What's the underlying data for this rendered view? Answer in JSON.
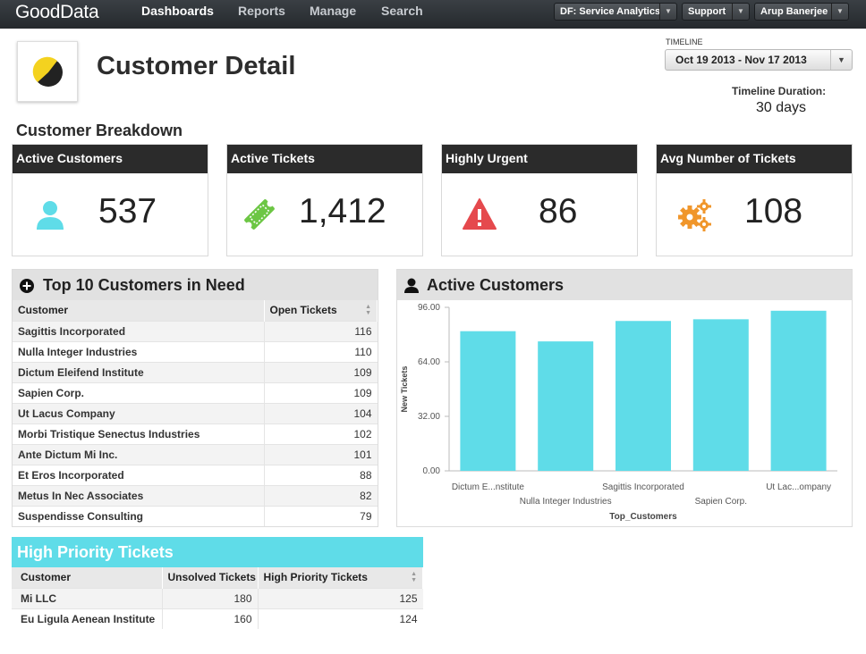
{
  "nav": {
    "logo": "GoodData",
    "items": [
      "Dashboards",
      "Reports",
      "Manage",
      "Search"
    ],
    "project": "DF: Service Analytics",
    "support": "Support",
    "user": "Arup Banerjee"
  },
  "header": {
    "title": "Customer Detail",
    "timeline_label": "TIMELINE",
    "timeline_value": "Oct 19 2013 - Nov 17 2013",
    "duration_label": "Timeline Duration:",
    "duration_value": "30 days"
  },
  "breakdown": {
    "title": "Customer Breakdown",
    "kpis": [
      {
        "label": "Active Customers",
        "value": "537",
        "icon": "user-icon",
        "color": "#5fdce8"
      },
      {
        "label": "Active Tickets",
        "value": "1,412",
        "icon": "ticket-icon",
        "color": "#6cc644"
      },
      {
        "label": "Highly Urgent",
        "value": "86",
        "icon": "warning-icon",
        "color": "#e5494d"
      },
      {
        "label": "Avg Number of Tickets",
        "value": "108",
        "icon": "gears-icon",
        "color": "#f0962b"
      }
    ]
  },
  "top_customers": {
    "title": "Top 10 Customers in Need",
    "columns": [
      "Customer",
      "Open Tickets"
    ],
    "rows": [
      [
        "Sagittis Incorporated",
        "116"
      ],
      [
        "Nulla Integer Industries",
        "110"
      ],
      [
        "Dictum Eleifend Institute",
        "109"
      ],
      [
        "Sapien Corp.",
        "109"
      ],
      [
        "Ut Lacus Company",
        "104"
      ],
      [
        "Morbi Tristique Senectus Industries",
        "102"
      ],
      [
        "Ante Dictum Mi Inc.",
        "101"
      ],
      [
        "Et Eros Incorporated",
        "88"
      ],
      [
        "Metus In Nec Associates",
        "82"
      ],
      [
        "Suspendisse Consulting",
        "79"
      ]
    ]
  },
  "active_chart": {
    "title": "Active Customers",
    "chart_data": {
      "type": "bar",
      "categories": [
        "Dictum E...nstitute",
        "Nulla Integer Industries",
        "Sagittis Incorporated",
        "Sapien Corp.",
        "Ut Lac...ompany"
      ],
      "values": [
        82,
        76,
        88,
        89,
        94
      ],
      "xlabel": "Top_Customers",
      "ylabel": "New Tickets",
      "yticks": [
        "0.00",
        "32.00",
        "64.00",
        "96.00"
      ],
      "ylim": [
        0,
        96
      ],
      "color": "#5fdce8",
      "grid": false
    }
  },
  "high_priority": {
    "title": "High Priority Tickets",
    "columns": [
      "Customer",
      "Unsolved Tickets",
      "High Priority Tickets"
    ],
    "rows": [
      [
        "Mi LLC",
        "180",
        "125"
      ],
      [
        "Eu Ligula Aenean Institute",
        "160",
        "124"
      ]
    ]
  }
}
